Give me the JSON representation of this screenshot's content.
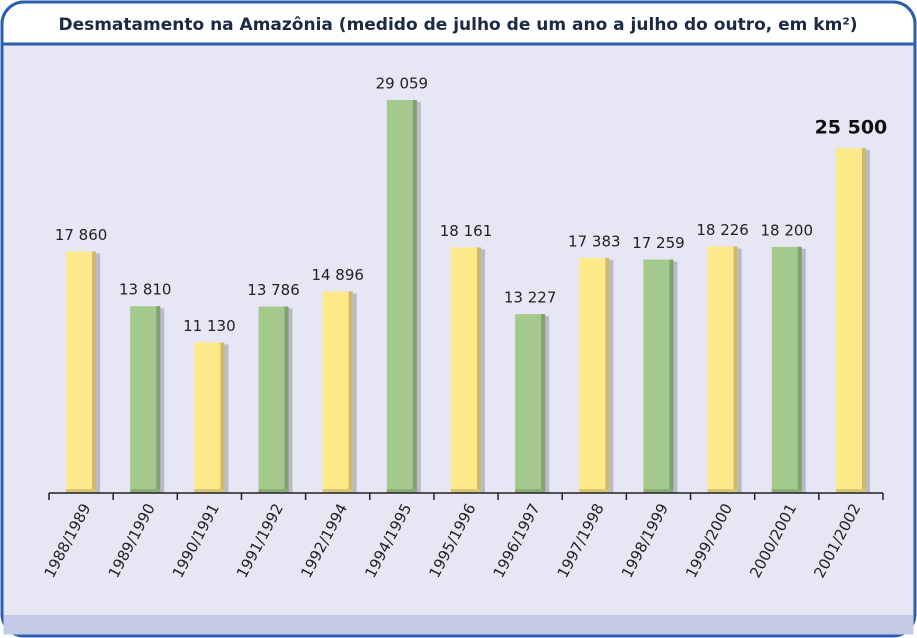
{
  "chart_data": {
    "type": "bar",
    "title": "Desmatamento na Amazônia (medido de julho de um ano a julho do outro, em km²)",
    "categories": [
      "1988/1989",
      "1989/1990",
      "1990/1991",
      "1991/1992",
      "1992/1994",
      "1994/1995",
      "1995/1996",
      "1996/1997",
      "1997/1998",
      "1998/1999",
      "1999/2000",
      "2000/2001",
      "2001/2002"
    ],
    "values": [
      17860,
      13810,
      11130,
      13786,
      14896,
      29059,
      18161,
      13227,
      17383,
      17259,
      18226,
      18200,
      25500
    ],
    "value_labels": [
      "17 860",
      "13 810",
      "11 130",
      "13 786",
      "14 896",
      "29 059",
      "18 161",
      "13 227",
      "17 383",
      "17 259",
      "18 226",
      "18 200",
      "25 500"
    ],
    "colors": [
      "#fde98a",
      "#a3c98c",
      "#fde98a",
      "#a3c98c",
      "#fde98a",
      "#a3c98c",
      "#fde98a",
      "#a3c98c",
      "#fde98a",
      "#a3c98c",
      "#fde98a",
      "#a3c98c",
      "#fde98a"
    ]
  }
}
